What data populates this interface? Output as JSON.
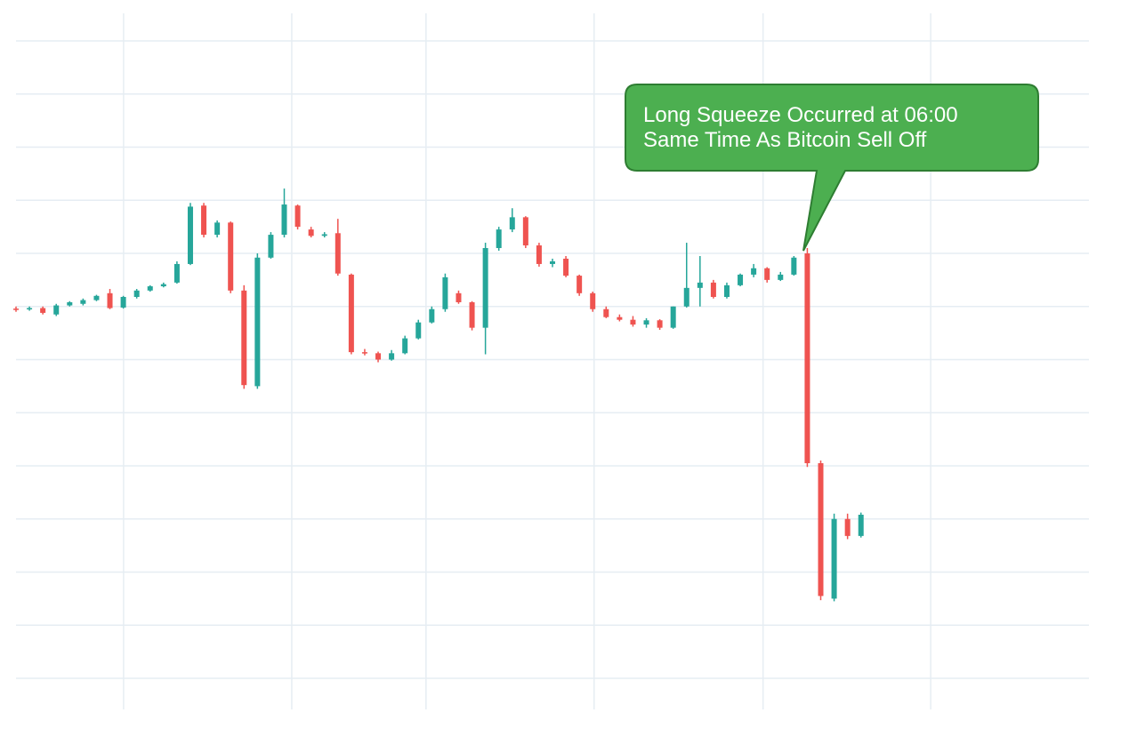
{
  "chart_data": {
    "type": "candlestick",
    "up_color": "#26a69a",
    "down_color": "#ef5350",
    "grid": true,
    "xlim": [
      0,
      80
    ],
    "xticks": [
      8.02,
      20.56,
      30.57,
      43.1,
      55.7,
      68.2
    ],
    "ylim": [
      0,
      12
    ],
    "yticks": [
      0,
      1,
      2,
      3,
      4,
      5,
      6,
      7,
      8,
      9,
      10,
      11,
      12
    ],
    "open": [
      6.96,
      6.95,
      6.97,
      6.85,
      7.02,
      7.05,
      7.12,
      7.25,
      6.98,
      7.18,
      7.3,
      7.38,
      7.45,
      7.8,
      8.9,
      8.35,
      8.58,
      7.3,
      5.5,
      7.92,
      8.35,
      8.9,
      8.45,
      8.33,
      8.38,
      7.6,
      6.14,
      6.12,
      6.0,
      6.12,
      6.4,
      6.7,
      6.95,
      7.25,
      7.08,
      6.6,
      8.1,
      8.45,
      8.68,
      8.15,
      7.8,
      7.9,
      7.58,
      7.25,
      6.95,
      6.8,
      6.75,
      6.66,
      6.74,
      6.6,
      7.0,
      7.35,
      7.45,
      7.18,
      7.4,
      7.6,
      7.72,
      7.5,
      7.6,
      8.0,
      4.05,
      1.5,
      3.0,
      2.68
    ],
    "high": [
      7.0,
      7.0,
      7.0,
      7.05,
      7.1,
      7.15,
      7.22,
      7.33,
      7.2,
      7.33,
      7.4,
      7.45,
      7.85,
      8.95,
      8.95,
      8.62,
      8.6,
      7.4,
      8.0,
      8.4,
      9.22,
      8.92,
      8.5,
      8.4,
      8.65,
      7.62,
      6.2,
      6.15,
      6.18,
      6.45,
      6.75,
      7.0,
      7.62,
      7.3,
      7.1,
      8.2,
      8.5,
      8.85,
      8.7,
      8.2,
      7.9,
      7.95,
      7.6,
      7.28,
      7.0,
      6.85,
      6.82,
      6.78,
      6.76,
      7.0,
      8.2,
      7.95,
      7.5,
      7.45,
      7.62,
      7.8,
      7.74,
      7.65,
      7.95,
      8.1,
      4.1,
      3.1,
      3.1,
      3.12
    ],
    "low": [
      6.9,
      6.92,
      6.85,
      6.82,
      7.0,
      7.02,
      7.1,
      6.95,
      6.96,
      7.15,
      7.28,
      7.36,
      7.43,
      7.78,
      8.3,
      8.3,
      7.25,
      5.45,
      5.45,
      7.9,
      8.3,
      8.45,
      8.3,
      8.3,
      7.58,
      6.1,
      6.08,
      5.95,
      5.98,
      6.1,
      6.38,
      6.68,
      6.9,
      7.05,
      6.55,
      6.1,
      8.05,
      8.4,
      8.1,
      7.75,
      7.74,
      7.55,
      7.2,
      6.9,
      6.78,
      6.72,
      6.62,
      6.6,
      6.56,
      6.58,
      6.98,
      7.0,
      7.15,
      7.15,
      7.38,
      7.55,
      7.45,
      7.48,
      7.58,
      3.98,
      1.47,
      1.45,
      2.62,
      2.65
    ],
    "close": [
      6.95,
      6.97,
      6.88,
      7.02,
      7.08,
      7.12,
      7.2,
      6.97,
      7.18,
      7.3,
      7.38,
      7.42,
      7.8,
      8.88,
      8.35,
      8.58,
      7.3,
      5.52,
      7.92,
      8.35,
      8.92,
      8.5,
      8.33,
      8.36,
      7.62,
      6.14,
      6.12,
      6.0,
      6.12,
      6.4,
      6.7,
      6.95,
      7.55,
      7.08,
      6.6,
      8.1,
      8.45,
      8.68,
      8.15,
      7.8,
      7.85,
      7.58,
      7.25,
      6.95,
      6.8,
      6.75,
      6.66,
      6.74,
      6.6,
      7.0,
      7.35,
      7.45,
      7.18,
      7.4,
      7.6,
      7.72,
      7.5,
      7.6,
      7.92,
      4.05,
      1.55,
      3.0,
      2.68,
      3.08
    ],
    "annotations": [
      "Long Squeeze Occurred at 06:00",
      "Same Time As Bitcoin Sell Off"
    ]
  }
}
